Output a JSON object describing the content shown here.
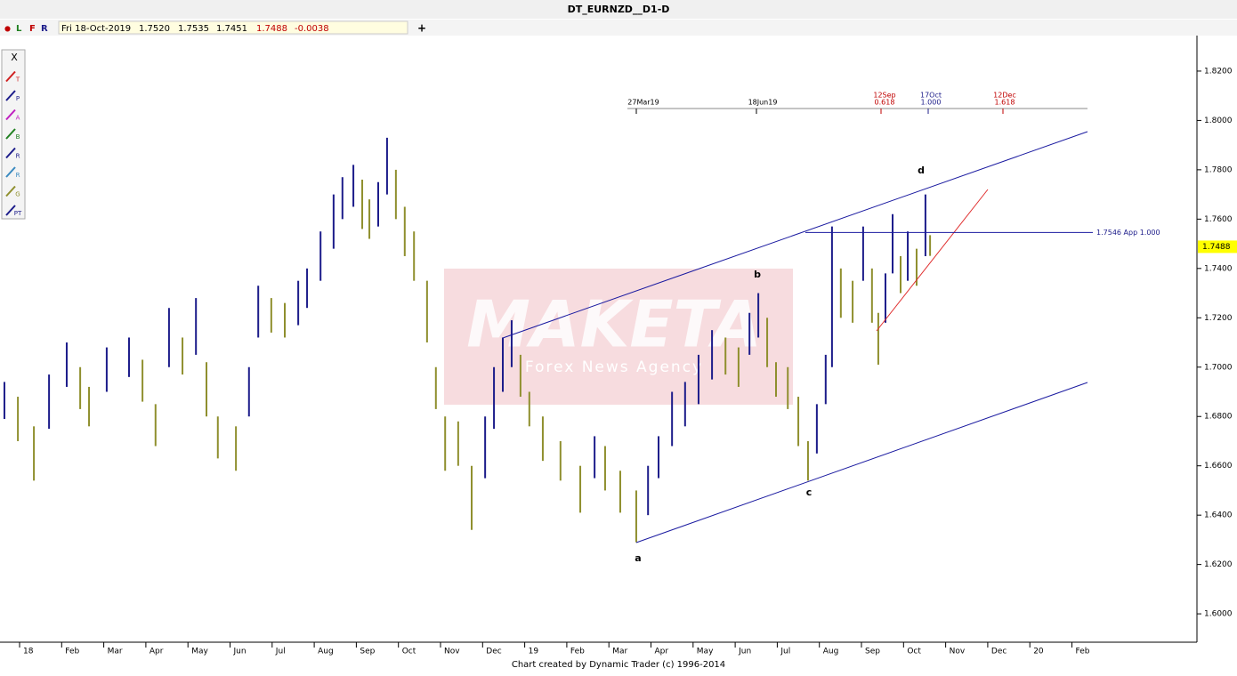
{
  "chart_data": {
    "type": "ohlc",
    "title": "DT_EURNZD__D1-D",
    "info_bar": {
      "markers": [
        "●",
        "L",
        "F",
        "R"
      ],
      "date": "Fri 18-Oct-2019",
      "open": "1.7520",
      "high": "1.7535",
      "low": "1.7451",
      "close": "1.7488",
      "change": "-0.0038",
      "add": "+"
    },
    "toolbar": [
      "X",
      "T",
      "P",
      "A",
      "B",
      "R",
      "R",
      "G",
      "PT"
    ],
    "watermark": {
      "title": "MAKETA",
      "subtitle": "Forex News Agency"
    },
    "footer": "Chart created by Dynamic Trader  (c) 1996-2014",
    "colors": [
      "#1c1c8a",
      "#8f8f2e"
    ],
    "xlim": [
      -0.465,
      27.97
    ],
    "ylim": [
      1.5885,
      1.8344
    ],
    "xticks": [
      {
        "value": 0,
        "label": "18"
      },
      {
        "value": 1,
        "label": "Feb"
      },
      {
        "value": 2,
        "label": "Mar"
      },
      {
        "value": 3,
        "label": "Apr"
      },
      {
        "value": 4,
        "label": "May"
      },
      {
        "value": 5,
        "label": "Jun"
      },
      {
        "value": 6,
        "label": "Jul"
      },
      {
        "value": 7,
        "label": "Aug"
      },
      {
        "value": 8,
        "label": "Sep"
      },
      {
        "value": 9,
        "label": "Oct"
      },
      {
        "value": 10,
        "label": "Nov"
      },
      {
        "value": 11,
        "label": "Dec"
      },
      {
        "value": 12,
        "label": "19"
      },
      {
        "value": 13,
        "label": "Feb"
      },
      {
        "value": 14,
        "label": "Mar"
      },
      {
        "value": 15,
        "label": "Apr"
      },
      {
        "value": 16,
        "label": "May"
      },
      {
        "value": 17,
        "label": "Jun"
      },
      {
        "value": 18,
        "label": "Jul"
      },
      {
        "value": 19,
        "label": "Aug"
      },
      {
        "value": 20,
        "label": "Sep"
      },
      {
        "value": 21,
        "label": "Oct"
      },
      {
        "value": 22,
        "label": "Nov"
      },
      {
        "value": 23,
        "label": "Dec"
      },
      {
        "value": 24,
        "label": "20"
      },
      {
        "value": 25,
        "label": "Feb"
      }
    ],
    "yticks": [
      {
        "value": 1.6,
        "label": "1.6000"
      },
      {
        "value": 1.62,
        "label": "1.6200"
      },
      {
        "value": 1.64,
        "label": "1.6400"
      },
      {
        "value": 1.66,
        "label": "1.6600"
      },
      {
        "value": 1.68,
        "label": "1.6800"
      },
      {
        "value": 1.7,
        "label": "1.7000"
      },
      {
        "value": 1.72,
        "label": "1.7200"
      },
      {
        "value": 1.74,
        "label": "1.7400"
      },
      {
        "value": 1.76,
        "label": "1.7600"
      },
      {
        "value": 1.78,
        "label": "1.7800"
      },
      {
        "value": 1.8,
        "label": "1.8000"
      },
      {
        "value": 1.82,
        "label": "1.8200"
      }
    ],
    "bars": {
      "x": [
        -0.36,
        -0.04,
        0.34,
        0.7,
        1.12,
        1.44,
        1.65,
        2.07,
        2.6,
        2.92,
        3.23,
        3.55,
        3.87,
        4.19,
        4.44,
        4.71,
        5.14,
        5.45,
        5.67,
        5.98,
        6.3,
        6.62,
        6.83,
        7.15,
        7.46,
        7.67,
        7.93,
        8.14,
        8.31,
        8.52,
        8.73,
        8.94,
        9.15,
        9.37,
        9.68,
        9.89,
        10.11,
        10.42,
        10.74,
        11.06,
        11.27,
        11.48,
        11.69,
        11.9,
        12.11,
        12.43,
        12.85,
        13.32,
        13.66,
        13.91,
        14.27,
        14.65,
        14.93,
        15.18,
        15.5,
        15.81,
        16.13,
        16.45,
        16.77,
        17.08,
        17.34,
        17.55,
        17.76,
        17.97,
        18.25,
        18.5,
        18.73,
        18.94,
        19.15,
        19.3,
        19.51,
        19.79,
        20.04,
        20.25,
        20.4,
        20.57,
        20.74,
        20.93,
        21.1,
        21.31,
        21.52,
        21.63
      ],
      "high": [
        1.694,
        1.688,
        1.676,
        1.697,
        1.71,
        1.7,
        1.692,
        1.708,
        1.712,
        1.703,
        1.685,
        1.724,
        1.712,
        1.728,
        1.702,
        1.68,
        1.676,
        1.7,
        1.733,
        1.728,
        1.726,
        1.735,
        1.74,
        1.755,
        1.77,
        1.777,
        1.782,
        1.776,
        1.768,
        1.775,
        1.793,
        1.78,
        1.765,
        1.755,
        1.735,
        1.7,
        1.68,
        1.678,
        1.66,
        1.68,
        1.7,
        1.712,
        1.719,
        1.705,
        1.69,
        1.68,
        1.67,
        1.66,
        1.672,
        1.668,
        1.658,
        1.65,
        1.66,
        1.672,
        1.69,
        1.694,
        1.705,
        1.715,
        1.712,
        1.708,
        1.722,
        1.73,
        1.72,
        1.702,
        1.7,
        1.688,
        1.67,
        1.685,
        1.705,
        1.757,
        1.74,
        1.735,
        1.757,
        1.74,
        1.722,
        1.738,
        1.762,
        1.745,
        1.755,
        1.748,
        1.77,
        1.7535
      ],
      "low": [
        1.679,
        1.67,
        1.654,
        1.675,
        1.692,
        1.683,
        1.676,
        1.69,
        1.696,
        1.686,
        1.668,
        1.7,
        1.697,
        1.705,
        1.68,
        1.663,
        1.658,
        1.68,
        1.712,
        1.714,
        1.712,
        1.717,
        1.724,
        1.735,
        1.748,
        1.76,
        1.765,
        1.756,
        1.752,
        1.757,
        1.77,
        1.76,
        1.745,
        1.735,
        1.71,
        1.683,
        1.658,
        1.66,
        1.634,
        1.655,
        1.675,
        1.69,
        1.7,
        1.688,
        1.676,
        1.662,
        1.654,
        1.641,
        1.655,
        1.65,
        1.641,
        1.629,
        1.64,
        1.655,
        1.668,
        1.676,
        1.685,
        1.695,
        1.697,
        1.692,
        1.705,
        1.712,
        1.7,
        1.688,
        1.683,
        1.668,
        1.654,
        1.665,
        1.685,
        1.7,
        1.72,
        1.718,
        1.735,
        1.718,
        1.701,
        1.718,
        1.738,
        1.73,
        1.735,
        1.733,
        1.745,
        1.7451
      ]
    },
    "level": {
      "value": 1.7546,
      "label": "1.7546 App 1.000"
    },
    "last_price": 1.7488,
    "wave_labels": [
      "a",
      "b",
      "c",
      "d"
    ],
    "time_markers": [
      {
        "date": "27Mar19"
      },
      {
        "date": "18Jun19"
      },
      {
        "date": "12Sep",
        "ratio": "0.618"
      },
      {
        "date": "17Oct",
        "ratio": "1.000"
      },
      {
        "date": "12Dec",
        "ratio": "1.618"
      }
    ]
  }
}
